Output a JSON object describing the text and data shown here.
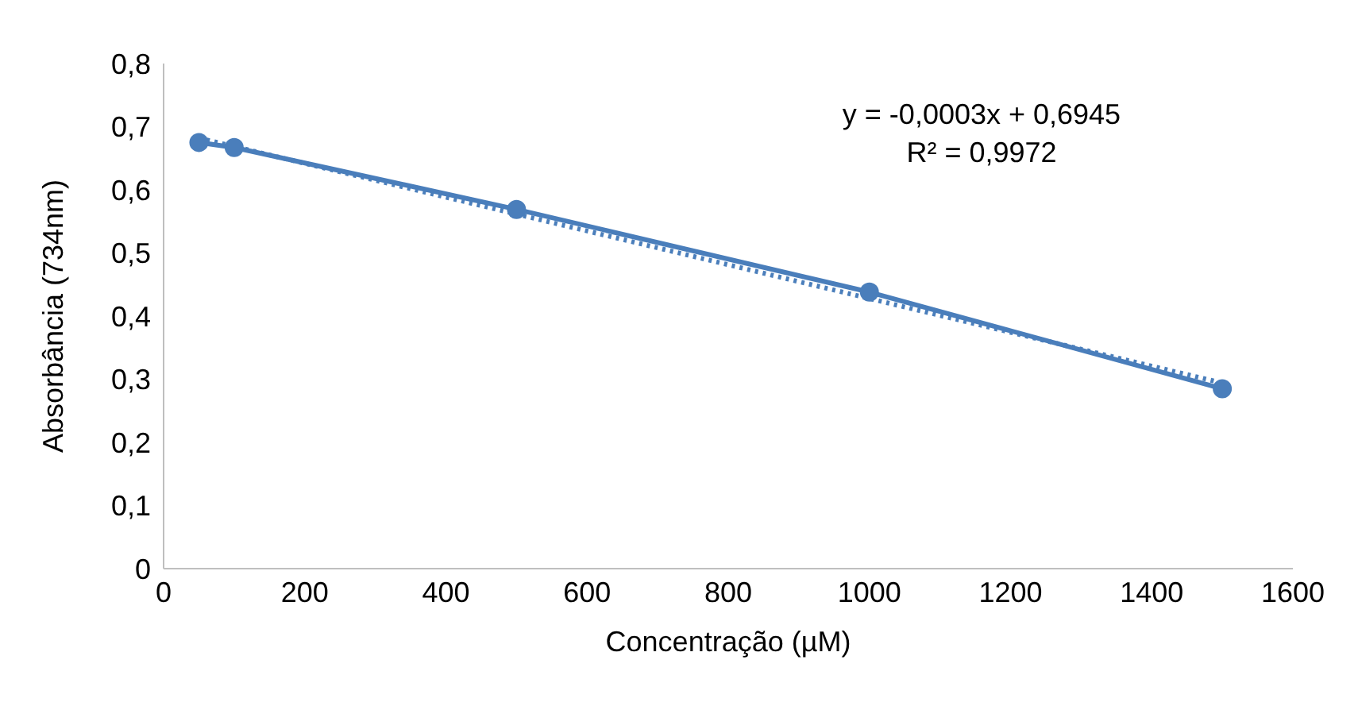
{
  "chart_data": {
    "type": "line",
    "xlabel": "Concentração (µM)",
    "ylabel": "Absorbância (734nm)",
    "annotations": [
      "y = -0,0003x + 0,6945",
      "R² = 0,9972"
    ],
    "series": [
      {
        "color": "#4a7ebb",
        "x": [
          50,
          100,
          500,
          1000,
          1500
        ],
        "values": [
          0.675,
          0.667,
          0.569,
          0.438,
          0.285
        ],
        "marker": "circle",
        "line_style": "solid"
      },
      {
        "color": "#4a7ebb",
        "x": [
          50,
          1500
        ],
        "values": [
          0.682,
          0.294
        ],
        "marker": "none",
        "line_style": "dotted"
      }
    ],
    "xlim": [
      0,
      1600
    ],
    "xticks": [
      0,
      200,
      400,
      600,
      800,
      1000,
      1200,
      1400,
      1600
    ],
    "ylim": [
      0,
      0.8
    ],
    "yticks": [
      0,
      {
        "value": 0.1,
        "label": "0,1"
      },
      {
        "value": 0.2,
        "label": "0,2"
      },
      {
        "value": 0.3,
        "label": "0,3"
      },
      {
        "value": 0.4,
        "label": "0,4"
      },
      {
        "value": 0.5,
        "label": "0,5"
      },
      {
        "value": 0.6,
        "label": "0,6"
      },
      {
        "value": 0.7,
        "label": "0,7"
      },
      {
        "value": 0.8,
        "label": "0,8"
      }
    ],
    "grid": false
  }
}
